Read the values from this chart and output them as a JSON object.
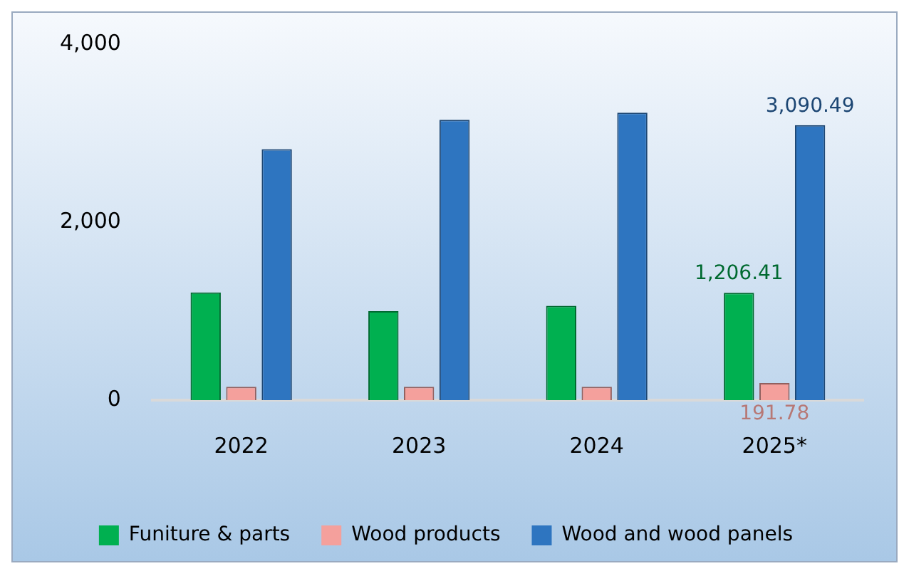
{
  "chart_data": {
    "type": "bar",
    "categories": [
      "2022",
      "2023",
      "2024",
      "2025*"
    ],
    "series": [
      {
        "name": "Funiture & parts",
        "color": "#00b050",
        "values": [
          1210,
          1000,
          1060,
          1206.41
        ],
        "value_labels": [
          null,
          null,
          null,
          "1,206.41"
        ]
      },
      {
        "name": "Wood products",
        "color": "#f4a09c",
        "values": [
          150,
          150,
          150,
          191.78
        ],
        "value_labels": [
          null,
          null,
          null,
          "191.78"
        ]
      },
      {
        "name": "Wood and wood panels",
        "color": "#2e75c0",
        "values": [
          2820,
          3150,
          3230,
          3090.49
        ],
        "value_labels": [
          null,
          null,
          null,
          "3,090.49"
        ]
      }
    ],
    "ylim": [
      0,
      4000
    ],
    "yticks": [
      {
        "value": 0,
        "label": "0"
      },
      {
        "value": 2000,
        "label": "2,000"
      },
      {
        "value": 4000,
        "label": "4,000"
      }
    ],
    "grid": false,
    "legend": "bottom"
  }
}
